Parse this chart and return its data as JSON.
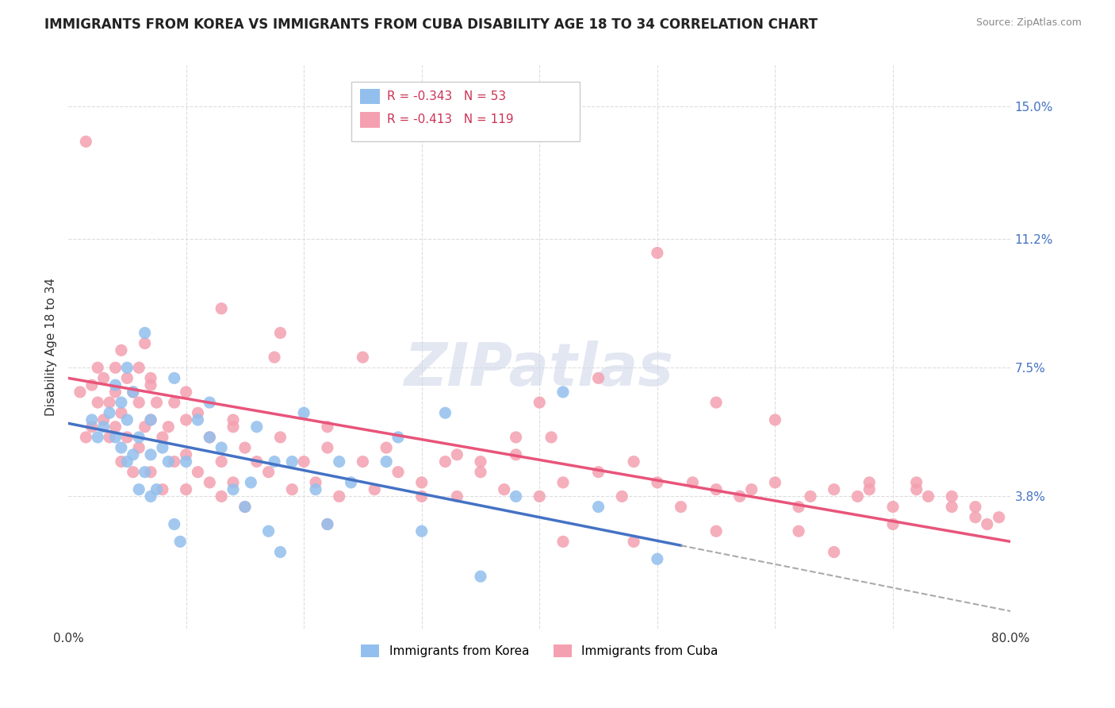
{
  "title": "IMMIGRANTS FROM KOREA VS IMMIGRANTS FROM CUBA DISABILITY AGE 18 TO 34 CORRELATION CHART",
  "source": "Source: ZipAtlas.com",
  "ylabel": "Disability Age 18 to 34",
  "xlim": [
    0.0,
    0.8
  ],
  "ylim": [
    0.0,
    0.162
  ],
  "xticks": [
    0.0,
    0.1,
    0.2,
    0.3,
    0.4,
    0.5,
    0.6,
    0.7,
    0.8
  ],
  "xticklabels": [
    "0.0%",
    "",
    "",
    "",
    "",
    "",
    "",
    "",
    "80.0%"
  ],
  "ytick_positions": [
    0.038,
    0.075,
    0.112,
    0.15
  ],
  "ytick_labels": [
    "3.8%",
    "7.5%",
    "11.2%",
    "15.0%"
  ],
  "korea_color": "#92bfed",
  "cuba_color": "#f4a0b0",
  "korea_R": -0.343,
  "korea_N": 53,
  "cuba_R": -0.413,
  "cuba_N": 119,
  "legend_label_korea": "Immigrants from Korea",
  "legend_label_cuba": "Immigrants from Cuba",
  "watermark": "ZIPatlas",
  "background_color": "#ffffff",
  "grid_color": "#dddddd",
  "korea_trend_start_x": 0.0,
  "korea_trend_start_y": 0.059,
  "korea_trend_end_x": 0.8,
  "korea_trend_end_y": 0.005,
  "cuba_trend_start_x": 0.0,
  "cuba_trend_start_y": 0.072,
  "cuba_trend_end_x": 0.8,
  "cuba_trend_end_y": 0.025,
  "korea_scatter_x": [
    0.02,
    0.025,
    0.03,
    0.035,
    0.04,
    0.04,
    0.045,
    0.045,
    0.05,
    0.05,
    0.05,
    0.055,
    0.055,
    0.06,
    0.06,
    0.065,
    0.065,
    0.07,
    0.07,
    0.07,
    0.075,
    0.08,
    0.085,
    0.09,
    0.09,
    0.095,
    0.1,
    0.11,
    0.12,
    0.12,
    0.13,
    0.14,
    0.15,
    0.155,
    0.16,
    0.17,
    0.175,
    0.18,
    0.19,
    0.2,
    0.21,
    0.22,
    0.23,
    0.24,
    0.27,
    0.28,
    0.3,
    0.32,
    0.35,
    0.38,
    0.42,
    0.45,
    0.5
  ],
  "korea_scatter_y": [
    0.06,
    0.055,
    0.058,
    0.062,
    0.07,
    0.055,
    0.065,
    0.052,
    0.06,
    0.048,
    0.075,
    0.068,
    0.05,
    0.04,
    0.055,
    0.085,
    0.045,
    0.038,
    0.06,
    0.05,
    0.04,
    0.052,
    0.048,
    0.072,
    0.03,
    0.025,
    0.048,
    0.06,
    0.065,
    0.055,
    0.052,
    0.04,
    0.035,
    0.042,
    0.058,
    0.028,
    0.048,
    0.022,
    0.048,
    0.062,
    0.04,
    0.03,
    0.048,
    0.042,
    0.048,
    0.055,
    0.028,
    0.062,
    0.015,
    0.038,
    0.068,
    0.035,
    0.02
  ],
  "cuba_scatter_x": [
    0.01,
    0.015,
    0.02,
    0.02,
    0.025,
    0.025,
    0.03,
    0.03,
    0.035,
    0.035,
    0.04,
    0.04,
    0.04,
    0.045,
    0.045,
    0.045,
    0.05,
    0.05,
    0.055,
    0.055,
    0.06,
    0.06,
    0.06,
    0.065,
    0.07,
    0.07,
    0.07,
    0.075,
    0.08,
    0.08,
    0.085,
    0.09,
    0.09,
    0.1,
    0.1,
    0.1,
    0.11,
    0.11,
    0.12,
    0.12,
    0.13,
    0.13,
    0.14,
    0.14,
    0.15,
    0.15,
    0.16,
    0.17,
    0.18,
    0.19,
    0.2,
    0.21,
    0.22,
    0.23,
    0.25,
    0.26,
    0.28,
    0.3,
    0.32,
    0.33,
    0.35,
    0.37,
    0.38,
    0.4,
    0.42,
    0.45,
    0.47,
    0.5,
    0.52,
    0.55,
    0.57,
    0.6,
    0.62,
    0.65,
    0.67,
    0.68,
    0.7,
    0.72,
    0.73,
    0.75,
    0.77,
    0.78,
    0.015,
    0.13,
    0.18,
    0.25,
    0.33,
    0.38,
    0.45,
    0.55,
    0.6,
    0.065,
    0.07,
    0.1,
    0.14,
    0.175,
    0.22,
    0.27,
    0.35,
    0.41,
    0.48,
    0.53,
    0.58,
    0.63,
    0.68,
    0.72,
    0.75,
    0.77,
    0.79,
    0.55,
    0.48,
    0.3,
    0.22,
    0.42,
    0.62,
    0.7,
    0.65,
    0.5,
    0.4
  ],
  "cuba_scatter_y": [
    0.068,
    0.055,
    0.07,
    0.058,
    0.065,
    0.075,
    0.06,
    0.072,
    0.065,
    0.055,
    0.068,
    0.075,
    0.058,
    0.08,
    0.062,
    0.048,
    0.072,
    0.055,
    0.068,
    0.045,
    0.075,
    0.065,
    0.052,
    0.058,
    0.07,
    0.06,
    0.045,
    0.065,
    0.055,
    0.04,
    0.058,
    0.065,
    0.048,
    0.06,
    0.05,
    0.04,
    0.062,
    0.045,
    0.055,
    0.042,
    0.048,
    0.038,
    0.058,
    0.042,
    0.052,
    0.035,
    0.048,
    0.045,
    0.055,
    0.04,
    0.048,
    0.042,
    0.052,
    0.038,
    0.048,
    0.04,
    0.045,
    0.042,
    0.048,
    0.038,
    0.045,
    0.04,
    0.05,
    0.038,
    0.042,
    0.045,
    0.038,
    0.042,
    0.035,
    0.04,
    0.038,
    0.042,
    0.035,
    0.04,
    0.038,
    0.042,
    0.035,
    0.04,
    0.038,
    0.035,
    0.032,
    0.03,
    0.14,
    0.092,
    0.085,
    0.078,
    0.05,
    0.055,
    0.072,
    0.065,
    0.06,
    0.082,
    0.072,
    0.068,
    0.06,
    0.078,
    0.058,
    0.052,
    0.048,
    0.055,
    0.048,
    0.042,
    0.04,
    0.038,
    0.04,
    0.042,
    0.038,
    0.035,
    0.032,
    0.028,
    0.025,
    0.038,
    0.03,
    0.025,
    0.028,
    0.03,
    0.022,
    0.108,
    0.065
  ]
}
